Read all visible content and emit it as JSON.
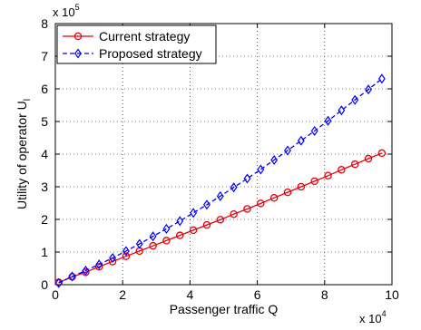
{
  "chart_data": {
    "type": "line",
    "xlabel": "Passenger traffic Q",
    "ylabel": "Utility of operator U",
    "ylabel_subscript": "l",
    "x_multiplier": {
      "base": "x 10",
      "exponent": "4"
    },
    "y_multiplier": {
      "base": "x 10",
      "exponent": "5"
    },
    "xlim": [
      0,
      10
    ],
    "ylim": [
      0,
      8
    ],
    "xticks": [
      "0",
      "2",
      "4",
      "6",
      "8",
      "10"
    ],
    "yticks": [
      "0",
      "1",
      "2",
      "3",
      "4",
      "5",
      "6",
      "7",
      "8"
    ],
    "grid": true,
    "legend_position": "top-left",
    "x": [
      0.1,
      0.5,
      0.9,
      1.3,
      1.7,
      2.1,
      2.5,
      2.9,
      3.3,
      3.7,
      4.1,
      4.5,
      4.9,
      5.3,
      5.7,
      6.1,
      6.5,
      6.9,
      7.3,
      7.7,
      8.1,
      8.5,
      8.9,
      9.3,
      9.7
    ],
    "series": [
      {
        "name": "Current strategy",
        "color": "#e8000b",
        "marker": "circle",
        "dash": "solid",
        "values": [
          0.07,
          0.24,
          0.38,
          0.55,
          0.71,
          0.87,
          1.03,
          1.19,
          1.35,
          1.51,
          1.67,
          1.83,
          1.99,
          2.16,
          2.32,
          2.49,
          2.66,
          2.83,
          3.0,
          3.17,
          3.34,
          3.52,
          3.69,
          3.86,
          4.03
        ]
      },
      {
        "name": "Proposed strategy",
        "color": "#0000ff",
        "marker": "diamond",
        "dash": "dashed",
        "values": [
          0.05,
          0.25,
          0.43,
          0.62,
          0.82,
          1.03,
          1.25,
          1.48,
          1.71,
          1.95,
          2.2,
          2.45,
          2.71,
          2.98,
          3.25,
          3.53,
          3.82,
          4.11,
          4.41,
          4.71,
          5.02,
          5.34,
          5.66,
          5.98,
          6.31
        ]
      }
    ]
  }
}
